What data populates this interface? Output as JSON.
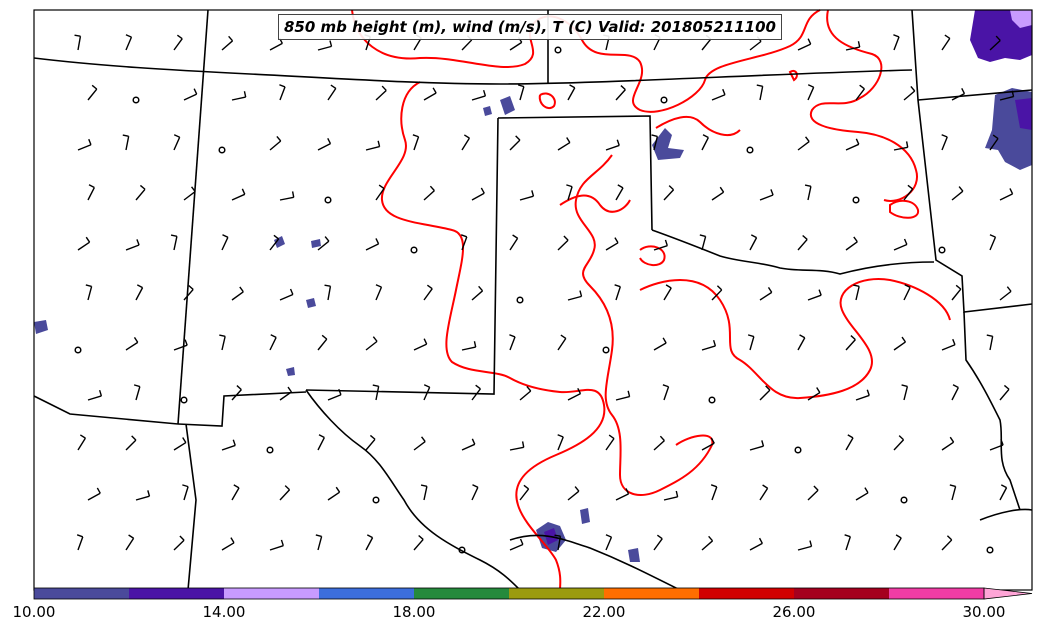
{
  "map": {
    "title": "850 mb height (m), wind (m/s), T (C) Valid: 201805211100",
    "region": "southern great plains",
    "contour_color": "#ff0000",
    "border_color": "#000000"
  },
  "colorbar": {
    "colors": [
      "#4a4a9b",
      "#4a14a6",
      "#c89bff",
      "#3c6edc",
      "#258a3c",
      "#9b9b0f",
      "#ff6e00",
      "#d20000",
      "#a5001e",
      "#f03ca5",
      "#ffa5d7"
    ],
    "tick_labels": [
      "10.00",
      "14.00",
      "18.00",
      "22.00",
      "26.00",
      "30.00"
    ],
    "tick_values": [
      10,
      14,
      18,
      22,
      26,
      30
    ],
    "bin_width": 2,
    "extend": "max"
  }
}
